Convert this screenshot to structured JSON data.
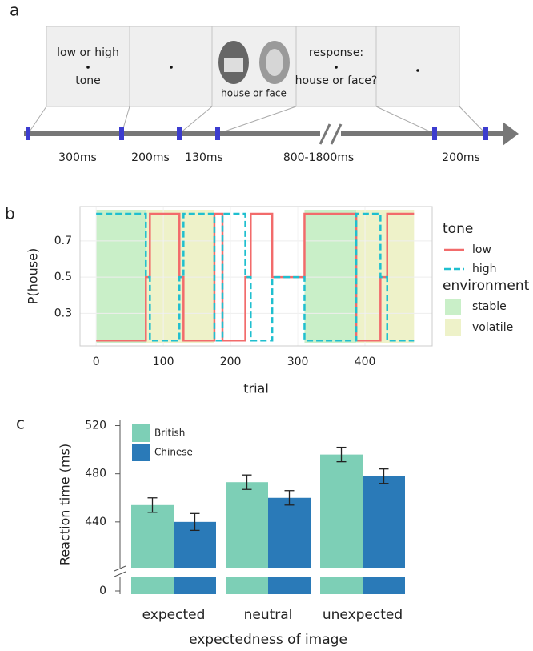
{
  "panel_a": {
    "label": "a",
    "cue_text": [
      "low or high",
      "tone"
    ],
    "stimulus_text": "house or face",
    "response_text": [
      "response:",
      "house or face?"
    ],
    "durations": [
      "300ms",
      "200ms",
      "130ms",
      "800-1800ms",
      "200ms"
    ]
  },
  "chart_data": [
    {
      "panel_label": "b",
      "type": "line",
      "xlabel": "trial",
      "ylabel": "P(house)",
      "x": [
        0,
        74,
        74,
        80,
        80,
        124,
        124,
        130,
        130,
        176,
        176,
        188,
        188,
        222,
        222,
        230,
        230,
        262,
        262,
        310,
        310,
        387,
        387,
        423,
        423,
        433,
        433,
        473
      ],
      "series": [
        {
          "name": "low",
          "color": "#f26b6b",
          "dash": false,
          "values": [
            0.15,
            0.15,
            0.5,
            0.5,
            0.85,
            0.85,
            0.5,
            0.5,
            0.15,
            0.15,
            0.85,
            0.85,
            0.15,
            0.15,
            0.5,
            0.5,
            0.85,
            0.85,
            0.5,
            0.5,
            0.85,
            0.85,
            0.15,
            0.15,
            0.5,
            0.5,
            0.85,
            0.85
          ]
        },
        {
          "name": "high",
          "color": "#1fbfcf",
          "dash": true,
          "values": [
            0.85,
            0.85,
            0.5,
            0.5,
            0.15,
            0.15,
            0.5,
            0.5,
            0.85,
            0.85,
            0.15,
            0.15,
            0.85,
            0.85,
            0.5,
            0.5,
            0.15,
            0.15,
            0.5,
            0.5,
            0.15,
            0.15,
            0.85,
            0.85,
            0.5,
            0.5,
            0.15,
            0.15
          ]
        }
      ],
      "legend_title": "tone",
      "bands_title": "environment",
      "bands": [
        {
          "name": "stable",
          "color": "#c9efc8",
          "ranges": [
            [
              0,
              74
            ],
            [
              310,
              387
            ]
          ]
        },
        {
          "name": "volatile",
          "color": "#eef2c9",
          "ranges": [
            [
              74,
              176
            ],
            [
              387,
              473
            ]
          ]
        }
      ],
      "xlim": [
        -24,
        500
      ],
      "xticks": [
        0,
        100,
        200,
        300,
        400
      ],
      "ylim": [
        0.12,
        0.89
      ],
      "yticks": [
        0.3,
        0.5,
        0.7
      ],
      "grid": true
    },
    {
      "panel_label": "c",
      "type": "bar",
      "xlabel": "expectedness of image",
      "ylabel": "Reaction time (ms)",
      "categories": [
        "expected",
        "neutral",
        "unexpected"
      ],
      "series": [
        {
          "name": "British",
          "color": "#7dcfb6",
          "values": [
            454,
            473,
            496
          ],
          "errors": [
            6,
            6,
            6
          ]
        },
        {
          "name": "Chinese",
          "color": "#2a7ab8",
          "values": [
            440,
            460,
            478
          ],
          "errors": [
            7,
            6,
            6
          ]
        }
      ],
      "ylim": [
        402,
        525
      ],
      "yticks": [
        0,
        440,
        480,
        520
      ],
      "axis_break": true
    }
  ]
}
